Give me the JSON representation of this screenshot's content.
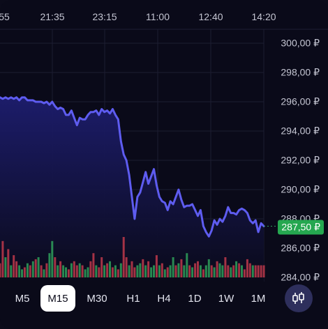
{
  "time_axis": [
    "55",
    "21:35",
    "23:15",
    "11:00",
    "12:40",
    "14:20"
  ],
  "price_axis": [
    "300,00 ₽",
    "298,00 ₽",
    "296,00 ₽",
    "294,00 ₽",
    "292,00 ₽",
    "290,00 ₽",
    "288,00 ₽",
    "286,00 ₽",
    "284,00 ₽"
  ],
  "current_price": "287,50 ₽",
  "timeframes": [
    "M5",
    "M15",
    "M30",
    "H1",
    "H4",
    "1D",
    "1W",
    "1M"
  ],
  "active_timeframe": "M15",
  "chart_type_icon": "candlestick-icon",
  "colors": {
    "line": "#5e5cf0",
    "up": "#2fa05b",
    "down": "#c0394b",
    "price_badge": "#25a750",
    "background": "#0a0a19"
  },
  "chart_data": {
    "type": "line",
    "ylim": [
      284,
      301
    ],
    "y_ticks": [
      300,
      298,
      296,
      294,
      292,
      290,
      288,
      286,
      284
    ],
    "series": [
      {
        "values": [
          296.3,
          296.2,
          296.3,
          296.2,
          296.3,
          296.2,
          296.3,
          296.1,
          296.3,
          296.3,
          296.1,
          296.1,
          296.1,
          296.0,
          296.0,
          296.0,
          295.9,
          296.0,
          295.8,
          296.0,
          295.7,
          295.5,
          295.6,
          295.5,
          295.1,
          295.1,
          295.4,
          294.9,
          294.4,
          294.9,
          294.8,
          294.8,
          295.1,
          295.3,
          295.3,
          295.4,
          295.1,
          295.5,
          295.3,
          295.4,
          295.2,
          295.5,
          295.1,
          294.8,
          293.3,
          292.4,
          292.0,
          291.0,
          289.5,
          288.0,
          289.5,
          289.8,
          290.5,
          291.2,
          290.4,
          290.9,
          291.4,
          290.3,
          289.5,
          289.2,
          289.1,
          288.6,
          289.2,
          289.0,
          289.5,
          290.0,
          289.3,
          288.8,
          288.9,
          288.9,
          289.0,
          288.6,
          288.2,
          288.6,
          287.5,
          287.1,
          286.8,
          287.2,
          287.9,
          287.6,
          288.0,
          287.8,
          288.2,
          288.8,
          288.4,
          288.4,
          288.3,
          288.6,
          288.7,
          288.6,
          288.4,
          287.9,
          287.7,
          287.9,
          287.1,
          287.7,
          287.5
        ],
        "volumes": [
          0.35,
          0.9,
          0.5,
          0.7,
          0.3,
          0.55,
          0.4,
          0.3,
          0.2,
          0.25,
          0.35,
          0.3,
          0.4,
          0.45,
          0.5,
          0.3,
          0.2,
          0.35,
          0.6,
          0.9,
          0.5,
          0.3,
          0.4,
          0.3,
          0.25,
          0.2,
          0.35,
          0.4,
          0.3,
          0.35,
          0.3,
          0.2,
          0.25,
          0.4,
          0.6,
          0.3,
          0.25,
          0.5,
          0.3,
          0.35,
          0.4,
          0.25,
          0.3,
          0.2,
          0.35,
          1.0,
          0.5,
          0.3,
          0.4,
          0.25,
          0.3,
          0.35,
          0.45,
          0.3,
          0.4,
          0.25,
          0.3,
          0.55,
          0.3,
          0.35,
          0.2,
          0.25,
          0.3,
          0.5,
          0.3,
          0.35,
          0.45,
          0.3,
          0.6,
          0.3,
          0.25,
          0.35,
          0.4,
          0.3,
          0.2,
          0.3,
          0.45,
          0.3,
          0.25,
          0.4,
          0.35,
          0.3,
          0.5,
          0.3,
          0.25,
          0.3,
          0.4,
          0.35,
          0.3,
          0.2,
          0.45,
          0.35,
          0.3,
          0.3,
          0.3,
          0.3,
          0.3
        ],
        "volume_colors": [
          "down",
          "down",
          "up",
          "down",
          "up",
          "down",
          "down",
          "up",
          "up",
          "down",
          "up",
          "down",
          "up",
          "down",
          "up",
          "down",
          "up",
          "down",
          "up",
          "up",
          "down",
          "up",
          "down",
          "up",
          "up",
          "down",
          "up",
          "down",
          "down",
          "up",
          "down",
          "up",
          "up",
          "down",
          "down",
          "up",
          "down",
          "down",
          "up",
          "down",
          "up",
          "down",
          "up",
          "down",
          "up",
          "down",
          "down",
          "up",
          "down",
          "down",
          "up",
          "up",
          "down",
          "up",
          "down",
          "up",
          "up",
          "down",
          "up",
          "down",
          "up",
          "down",
          "up",
          "up",
          "down",
          "up",
          "down",
          "up",
          "up",
          "down",
          "up",
          "down",
          "down",
          "up",
          "down",
          "up",
          "up",
          "down",
          "up",
          "down",
          "up",
          "up",
          "down",
          "down",
          "up",
          "down",
          "up",
          "down",
          "up",
          "down",
          "down",
          "down",
          "up",
          "down",
          "down",
          "down",
          "down"
        ]
      }
    ]
  }
}
